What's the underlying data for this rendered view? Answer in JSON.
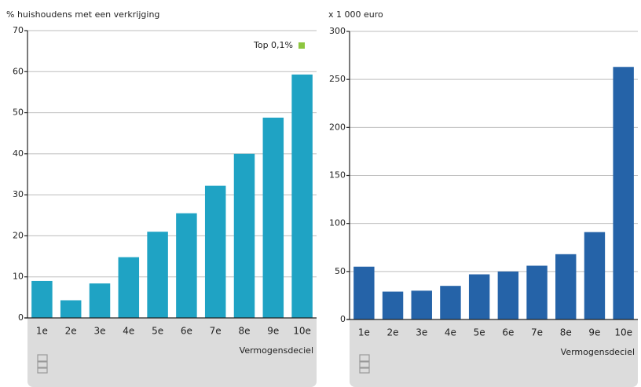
{
  "chart_data": [
    {
      "type": "bar",
      "y_label": "% huishoudens met een verkrijging",
      "x_label": "Vermogensdeciel",
      "categories": [
        "1e",
        "2e",
        "3e",
        "4e",
        "5e",
        "6e",
        "7e",
        "8e",
        "9e",
        "10e"
      ],
      "values": [
        9,
        4.3,
        8.4,
        14.8,
        21,
        25.5,
        32.2,
        40,
        48.8,
        59.3
      ],
      "color": "#1fa3c4",
      "ylim": [
        0,
        70
      ],
      "yticks": [
        0,
        10,
        20,
        30,
        40,
        50,
        60,
        70
      ],
      "grid": true,
      "legend": {
        "label": "Top 0,1%",
        "color": "#8dc63f"
      }
    },
    {
      "type": "bar",
      "y_label": "x 1 000 euro",
      "x_label": "Vermogensdeciel",
      "categories": [
        "1e",
        "2e",
        "3e",
        "4e",
        "5e",
        "6e",
        "7e",
        "8e",
        "9e",
        "10e"
      ],
      "values": [
        55,
        29,
        30,
        35,
        47,
        50,
        56,
        68,
        91,
        263
      ],
      "color": "#2563a8",
      "ylim": [
        0,
        300
      ],
      "yticks": [
        0,
        50,
        100,
        150,
        200,
        250,
        300
      ],
      "grid": true
    }
  ]
}
